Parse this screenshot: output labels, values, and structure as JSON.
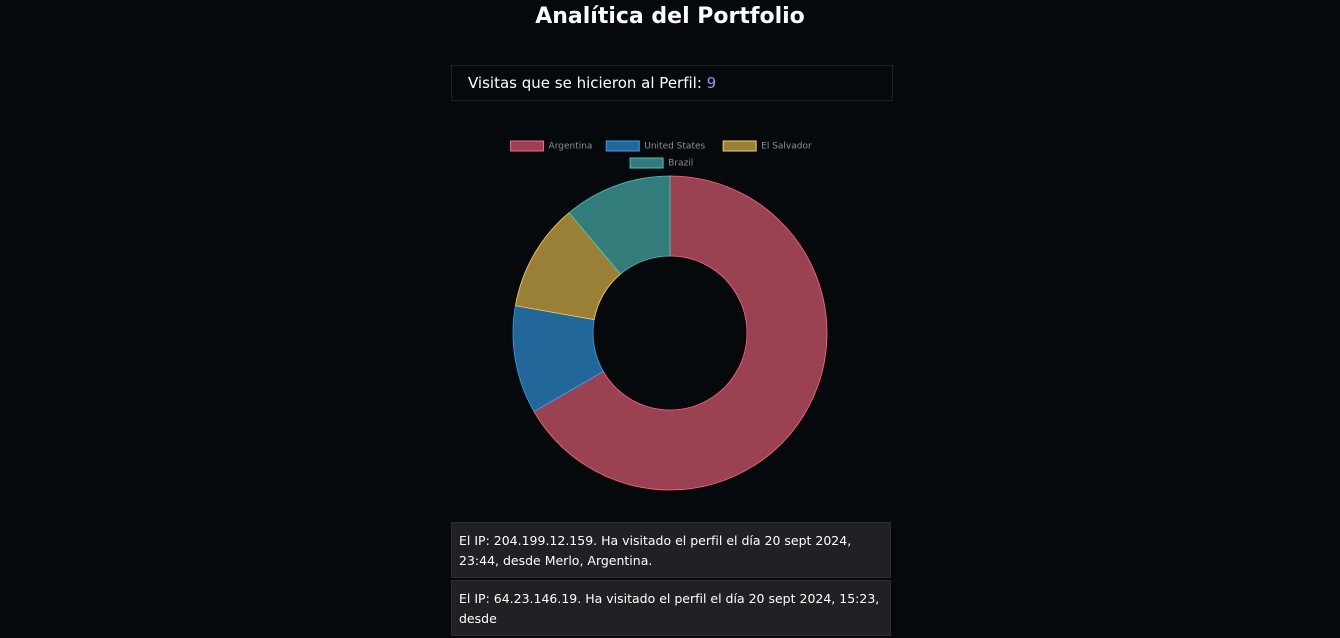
{
  "header": {
    "title": "Analítica del Portfolio"
  },
  "visits": {
    "label": "Visitas que se hicieron al Perfil:",
    "count": 9
  },
  "chart_data": {
    "type": "doughnut",
    "categories": [
      "Argentina",
      "United States",
      "El Salvador",
      "Brazil"
    ],
    "values": [
      6,
      1,
      1,
      1
    ],
    "colors": [
      "#9a4252",
      "#226799",
      "#9a8037",
      "#327d7b"
    ],
    "border_colors": [
      "#ff6384",
      "#36a2eb",
      "#ffcd56",
      "#4bc0c0"
    ]
  },
  "visit_list": [
    "El IP: 204.199.12.159. Ha visitado el perfil el día 20 sept 2024, 23:44, desde Merlo, Argentina.",
    "El IP: 64.23.146.19. Ha visitado el perfil el día 20 sept 2024, 15:23, desde"
  ]
}
